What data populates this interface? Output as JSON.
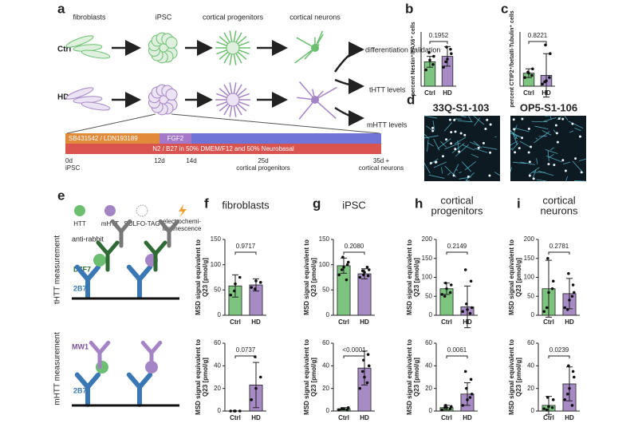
{
  "panels": [
    "a",
    "b",
    "c",
    "d",
    "e",
    "f",
    "g",
    "h",
    "i"
  ],
  "diagram": {
    "stages": [
      "fibroblasts",
      "iPSC",
      "cortical progenitors",
      "cortical neurons"
    ],
    "groups": [
      "Ctrl",
      "HD"
    ],
    "outcomes": [
      "differentiation validation",
      "tHTT levels",
      "mHTT levels"
    ],
    "protocol": [
      "SB431542 / LDN193189",
      "FGF2",
      "N2 / B27 in 50% DMEM/F12 and 50% Neurobasal"
    ],
    "timepoints": [
      "0d",
      "iPSC",
      "12d",
      "14d",
      "25d",
      "cortical progenitors",
      "35d +",
      "cortical neurons"
    ]
  },
  "images": [
    "33Q-S1-103",
    "OP5-S1-106"
  ],
  "assay": {
    "legend": [
      "HTT",
      "mHTT",
      "SULFO-TAG",
      "electrochemi-",
      "luminescence"
    ],
    "labels": [
      "anti-rabbit",
      "D7F7",
      "2B7",
      "tHTT measurement",
      "MW1",
      "2B7",
      "mHTT measurement"
    ]
  },
  "chart_data": [
    {
      "type": "bar",
      "ylabel": [
        "percent Nestin⁺/PAX6⁺ cells"
      ],
      "categories": [
        "Ctrl",
        "HD"
      ],
      "values": [
        45,
        55
      ],
      "errors": [
        10,
        18
      ],
      "points": [
        [
          30,
          48,
          55,
          62,
          40
        ],
        [
          35,
          50,
          60,
          72,
          68,
          45
        ]
      ],
      "pvalue": "0.1952",
      "colors": [
        "#7dc47f",
        "#a68bc5"
      ],
      "ylim": [
        0,
        100
      ]
    },
    {
      "type": "bar",
      "ylabel": [
        "percent CTIP2⁺/betaIII-Tubulin⁺ cells"
      ],
      "categories": [
        "Ctrl",
        "HD"
      ],
      "values": [
        12,
        10
      ],
      "errors": [
        4,
        20
      ],
      "points": [
        [
          8,
          12,
          16,
          13,
          10
        ],
        [
          2,
          5,
          30,
          38,
          8,
          4
        ]
      ],
      "pvalue": "0.8221",
      "colors": [
        "#7dc47f",
        "#a68bc5"
      ],
      "ylim": [
        0,
        50
      ]
    },
    {
      "type": "bar",
      "title": [
        "fibroblasts"
      ],
      "ylabel": [
        "MSD signal equivalent to",
        "Q23 [pmol/g]"
      ],
      "categories": [
        "Ctrl",
        "HD"
      ],
      "values": [
        58,
        60
      ],
      "errors": [
        22,
        12
      ],
      "points": [
        [
          40,
          62,
          75,
          48
        ],
        [
          55,
          68,
          65,
          52
        ]
      ],
      "pvalue": "0.9717",
      "colors": [
        "#7dc47f",
        "#a68bc5"
      ],
      "ylim": [
        0,
        150
      ],
      "yticks": [
        0,
        50,
        100,
        150
      ]
    },
    {
      "type": "bar",
      "ylabel": [
        "MSD signal equivalent to",
        "Q23 [pmol/g]"
      ],
      "categories": [
        "Ctrl",
        "HD"
      ],
      "values": [
        0,
        23
      ],
      "errors": [
        0,
        20
      ],
      "points": [
        [
          0,
          0,
          0,
          0
        ],
        [
          10,
          20,
          30,
          48
        ]
      ],
      "pvalue": "0.0737",
      "colors": [
        "#7dc47f",
        "#a68bc5"
      ],
      "ylim": [
        0,
        60
      ],
      "yticks": [
        0,
        20,
        40,
        60
      ]
    },
    {
      "type": "bar",
      "title": [
        "iPSC"
      ],
      "ylabel": [
        "MSD signal equivalent to",
        "Q23 [pmol/g]"
      ],
      "categories": [
        "Ctrl",
        "HD"
      ],
      "values": [
        98,
        82
      ],
      "errors": [
        15,
        10
      ],
      "points": [
        [
          80,
          95,
          105,
          115,
          100,
          90,
          70
        ],
        [
          75,
          85,
          90,
          80,
          78,
          88,
          95
        ]
      ],
      "pvalue": "0.2080",
      "colors": [
        "#7dc47f",
        "#a68bc5"
      ],
      "ylim": [
        0,
        150
      ],
      "yticks": [
        0,
        50,
        100,
        150
      ]
    },
    {
      "type": "bar",
      "ylabel": [
        "MSD signal equivalent to",
        "Q23 [pmol/g]"
      ],
      "categories": [
        "Ctrl",
        "HD"
      ],
      "values": [
        2,
        38
      ],
      "errors": [
        1,
        15
      ],
      "points": [
        [
          1,
          2,
          3,
          2,
          1,
          2
        ],
        [
          20,
          30,
          40,
          45,
          50,
          35,
          25
        ]
      ],
      "pvalue": "<0.0001",
      "colors": [
        "#7dc47f",
        "#a68bc5"
      ],
      "ylim": [
        0,
        60
      ],
      "yticks": [
        0,
        20,
        40,
        60
      ]
    },
    {
      "type": "bar",
      "title": [
        "cortical",
        "progenitors"
      ],
      "ylabel": [
        "MSD signal equivalent to",
        "Q23 [pmol/g]"
      ],
      "categories": [
        "Ctrl",
        "HD"
      ],
      "values": [
        70,
        22
      ],
      "errors": [
        15,
        55
      ],
      "points": [
        [
          55,
          70,
          80,
          85,
          60,
          50
        ],
        [
          10,
          15,
          20,
          30,
          90,
          120,
          5
        ]
      ],
      "pvalue": "0.2149",
      "colors": [
        "#7dc47f",
        "#a68bc5"
      ],
      "ylim": [
        0,
        200
      ],
      "yticks": [
        0,
        50,
        100,
        150,
        200
      ]
    },
    {
      "type": "bar",
      "ylabel": [
        "MSD signal equivalent to",
        "Q23 [pmol/g]"
      ],
      "categories": [
        "Ctrl",
        "HD"
      ],
      "values": [
        3,
        15
      ],
      "errors": [
        2,
        10
      ],
      "points": [
        [
          1,
          3,
          4,
          5,
          2,
          3
        ],
        [
          5,
          10,
          15,
          20,
          28,
          35,
          12
        ]
      ],
      "pvalue": "0.0061",
      "colors": [
        "#7dc47f",
        "#a68bc5"
      ],
      "ylim": [
        0,
        60
      ],
      "yticks": [
        0,
        20,
        40,
        60
      ]
    },
    {
      "type": "bar",
      "title": [
        "cortical",
        "neurons"
      ],
      "ylabel": [
        "MSD signal equivalent to",
        "Q23 [pmol/g]"
      ],
      "categories": [
        "Ctrl",
        "HD"
      ],
      "values": [
        70,
        57
      ],
      "errors": [
        75,
        40
      ],
      "points": [
        [
          10,
          60,
          90,
          150,
          70,
          20
        ],
        [
          20,
          40,
          60,
          110,
          80,
          15,
          50
        ]
      ],
      "pvalue": "0.2781",
      "colors": [
        "#7dc47f",
        "#a68bc5"
      ],
      "ylim": [
        0,
        200
      ],
      "yticks": [
        0,
        50,
        100,
        150,
        200
      ]
    },
    {
      "type": "bar",
      "ylabel": [
        "MSD signal equivalent to",
        "Q23 [pmol/g]"
      ],
      "categories": [
        "Ctrl",
        "HD"
      ],
      "values": [
        5,
        24
      ],
      "errors": [
        8,
        15
      ],
      "points": [
        [
          2,
          4,
          10,
          12,
          3,
          1
        ],
        [
          10,
          20,
          30,
          40,
          35,
          15,
          5
        ]
      ],
      "pvalue": "0.0239",
      "colors": [
        "#7dc47f",
        "#a68bc5"
      ],
      "ylim": [
        0,
        60
      ],
      "yticks": [
        0,
        20,
        40,
        60
      ]
    }
  ]
}
